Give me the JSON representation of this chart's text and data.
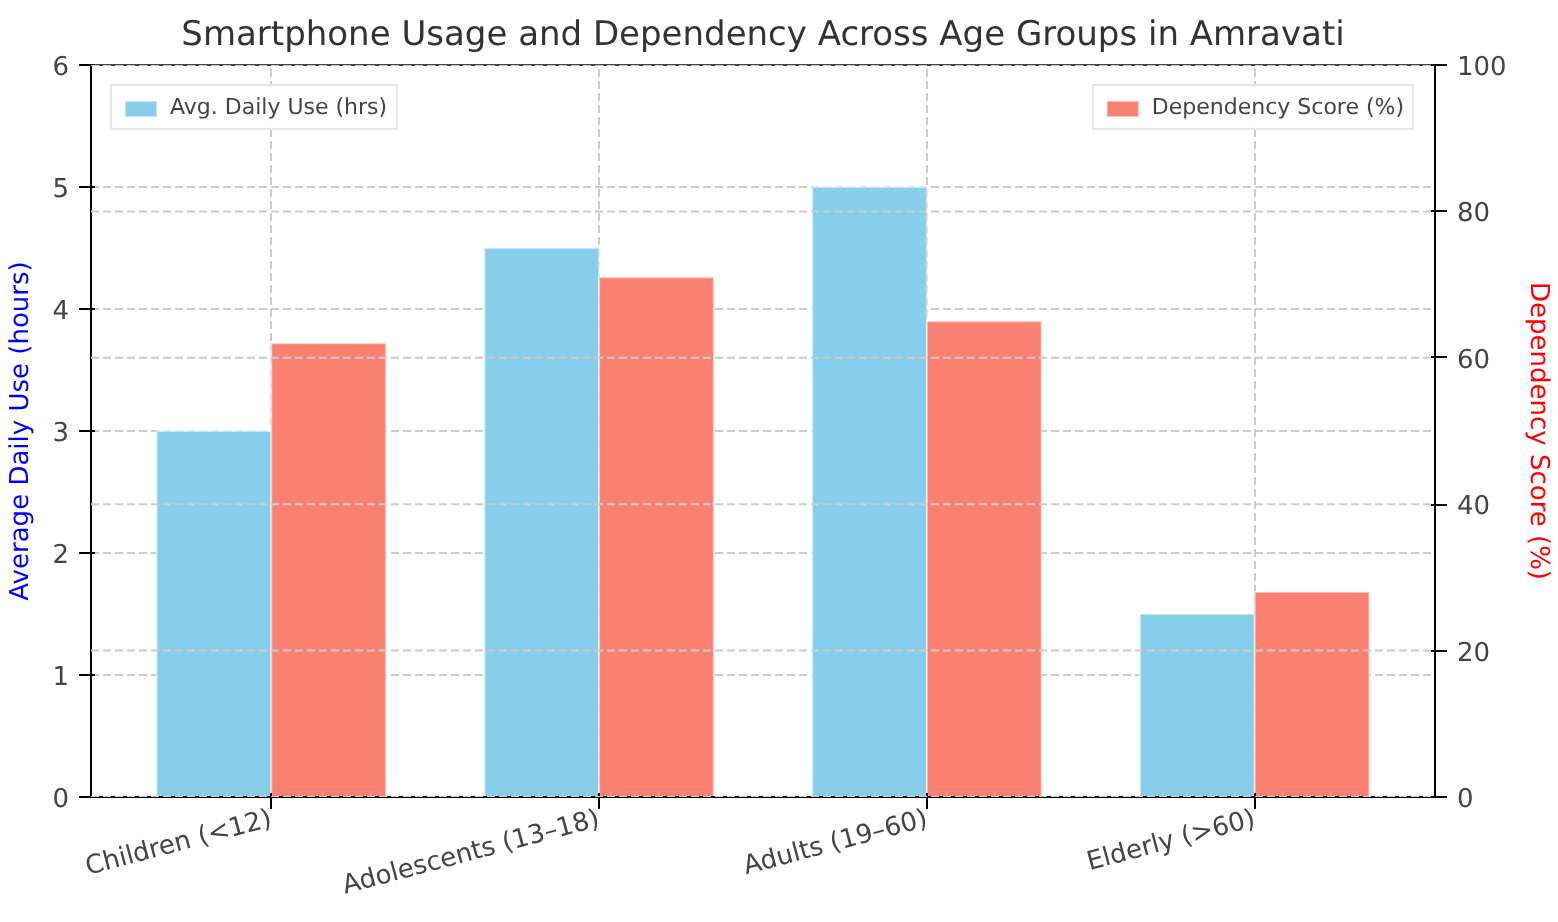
{
  "chart_data": {
    "type": "bar",
    "title": "Smartphone Usage and Dependency Across Age Groups in Amravati",
    "categories": [
      "Children (<12)",
      "Adolescents (13–18)",
      "Adults (19–60)",
      "Elderly (>60)"
    ],
    "ylabel": "Average Daily Use (hours)",
    "y2label": "Dependency Score (%)",
    "series": [
      {
        "name": "Avg. Daily Use (hrs)",
        "color": "#87ceeb",
        "values": [
          3,
          4.5,
          5,
          1.5
        ]
      },
      {
        "name": "Dependency Score (%)",
        "color": "#fa8072",
        "values": [
          62,
          71,
          65,
          28
        ],
        "axis": "y2"
      }
    ],
    "ylim": [
      0,
      6
    ],
    "yticks": [
      0,
      1,
      2,
      3,
      4,
      5,
      6
    ],
    "y2lim": [
      0,
      100
    ],
    "y2ticks": [
      0,
      20,
      40,
      60,
      80,
      100
    ],
    "grid": true,
    "legend": "top"
  }
}
